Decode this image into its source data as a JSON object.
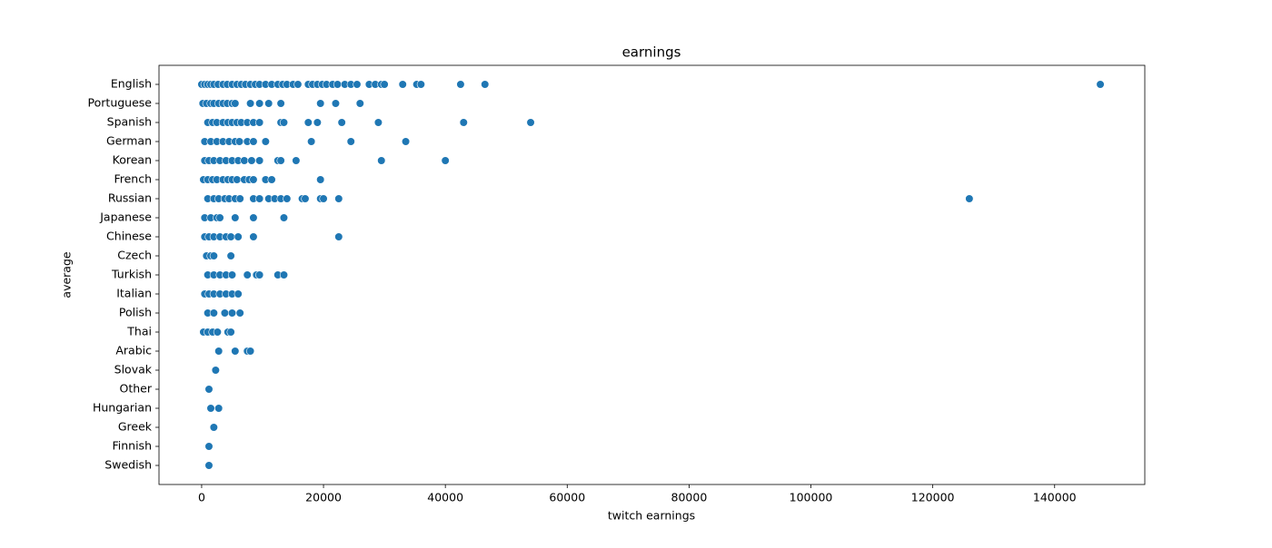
{
  "chart_data": {
    "type": "scatter",
    "title": "earnings",
    "x_label": "twitch earnings",
    "y_label": "average",
    "color": "#1f77b4",
    "xlim": [
      -7000,
      154800
    ],
    "xticks": [
      0,
      20000,
      40000,
      60000,
      80000,
      100000,
      120000,
      140000
    ],
    "categories": [
      "English",
      "Portuguese",
      "Spanish",
      "German",
      "Korean",
      "French",
      "Russian",
      "Japanese",
      "Chinese",
      "Czech",
      "Turkish",
      "Italian",
      "Polish",
      "Thai",
      "Arabic",
      "Slovak",
      "Other",
      "Hungarian",
      "Greek",
      "Finnish",
      "Swedish"
    ],
    "values": [
      [
        0,
        500,
        1000,
        1500,
        2000,
        2700,
        3500,
        4200,
        5000,
        5800,
        6500,
        7200,
        8000,
        8800,
        9500,
        10500,
        11500,
        12500,
        13300,
        14000,
        15000,
        15800,
        17500,
        18200,
        19000,
        19800,
        20500,
        21500,
        22300,
        23500,
        24500,
        25500,
        27500,
        28500,
        29500,
        30000,
        33000,
        35300,
        36000,
        42500,
        46500,
        147500
      ],
      [
        200,
        800,
        1500,
        2000,
        2800,
        3500,
        4200,
        5000,
        5500,
        8000,
        9500,
        11000,
        13000,
        19500,
        22000,
        26000
      ],
      [
        1000,
        1800,
        2500,
        3500,
        4300,
        5000,
        5800,
        6500,
        7500,
        8500,
        9500,
        13000,
        13500,
        17500,
        19000,
        23000,
        29000,
        43000,
        54000
      ],
      [
        500,
        1500,
        2500,
        3500,
        4500,
        5500,
        6200,
        7500,
        8500,
        10500,
        18000,
        24500,
        33500
      ],
      [
        500,
        1200,
        2000,
        3000,
        4000,
        5000,
        6000,
        7000,
        8200,
        9500,
        12500,
        13000,
        15500,
        29500,
        40000
      ],
      [
        300,
        1000,
        1800,
        2500,
        3500,
        4300,
        5000,
        5800,
        7000,
        7800,
        8500,
        10500,
        11500,
        19500
      ],
      [
        1000,
        2000,
        2800,
        3800,
        4500,
        5500,
        6300,
        8500,
        9500,
        11000,
        12000,
        13000,
        14000,
        16500,
        17000,
        19500,
        20000,
        22500,
        126000
      ],
      [
        500,
        1500,
        2500,
        3000,
        5500,
        8500,
        13500
      ],
      [
        500,
        1200,
        2000,
        3000,
        4000,
        4800,
        6000,
        8500,
        22500
      ],
      [
        800,
        1500,
        2000,
        4800
      ],
      [
        1000,
        2000,
        3000,
        4000,
        5000,
        7500,
        9000,
        9500,
        12500,
        13500
      ],
      [
        500,
        1200,
        2000,
        3000,
        4000,
        5000,
        6000
      ],
      [
        1000,
        2000,
        3800,
        5000,
        6300
      ],
      [
        300,
        1000,
        1800,
        2600,
        4300,
        4800
      ],
      [
        2800,
        5500,
        7500,
        8000
      ],
      [
        2300
      ],
      [
        1200
      ],
      [
        1500,
        2800
      ],
      [
        2000
      ],
      [
        1200
      ],
      [
        1200
      ]
    ]
  }
}
